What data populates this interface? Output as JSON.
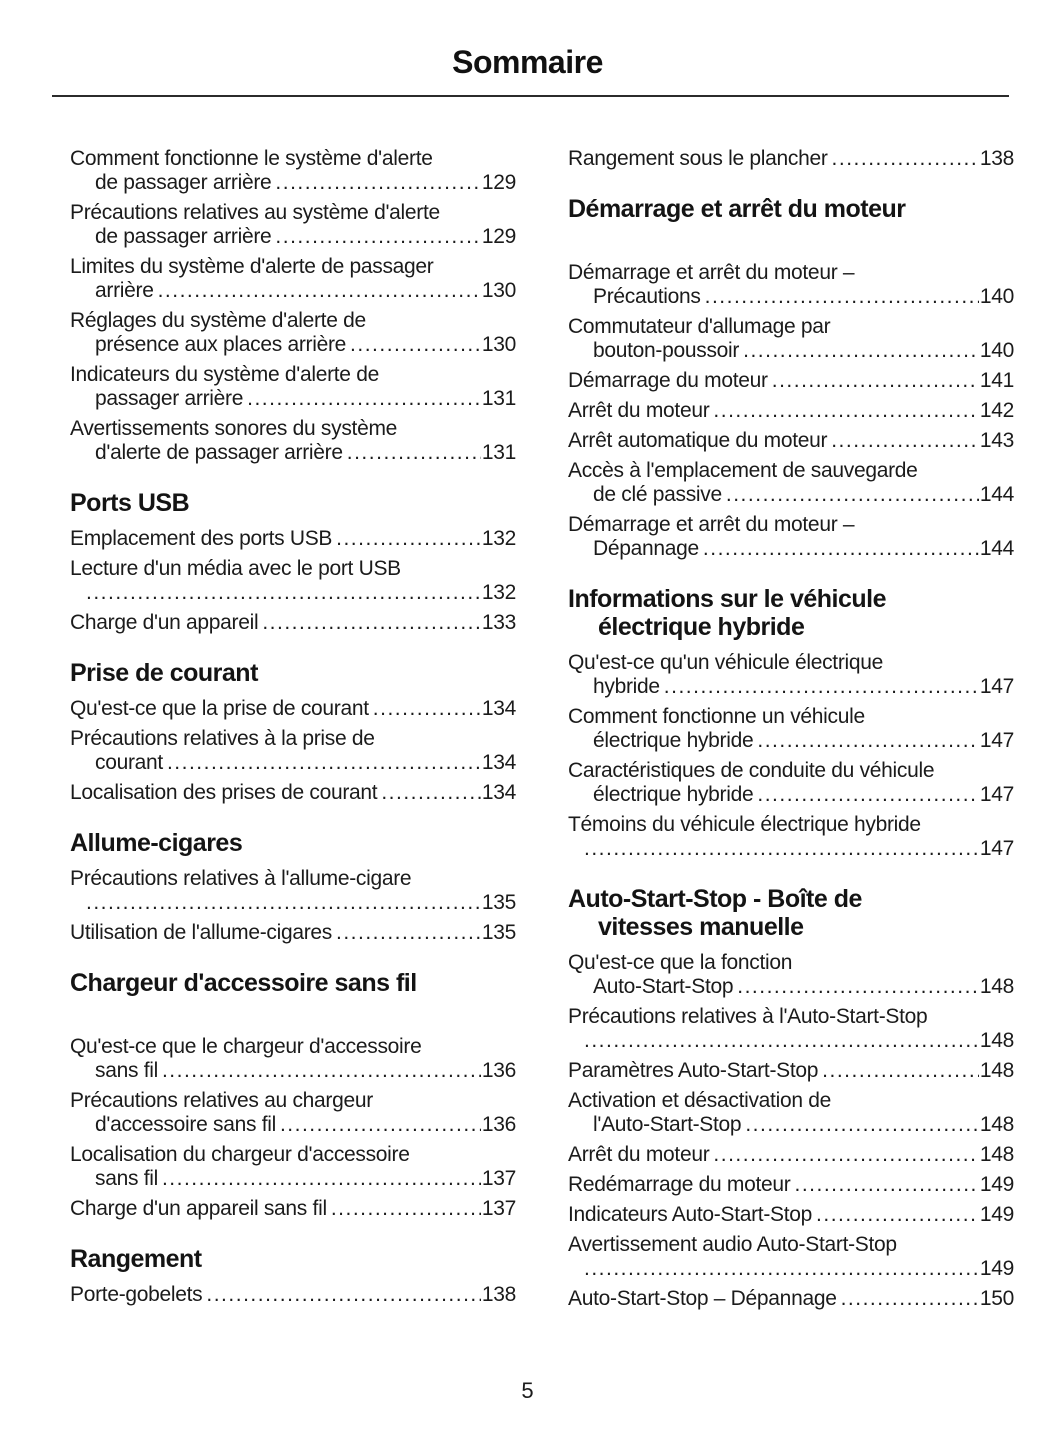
{
  "title": "Sommaire",
  "page_number": "5",
  "colors": {
    "ink": "#1b1b1b",
    "rule": "#2b2b2b",
    "background": "#ffffff"
  },
  "columns": [
    {
      "blocks": [
        {
          "heading_lines": [],
          "extra_gap": false,
          "entries": [
            {
              "lines": [
                "Comment fonctionne le système d'alerte",
                "de passager arrière"
              ],
              "page": "129"
            },
            {
              "lines": [
                "Précautions relatives au système d'alerte",
                "de passager arrière"
              ],
              "page": "129"
            },
            {
              "lines": [
                "Limites du système d'alerte de passager",
                "arrière"
              ],
              "page": "130"
            },
            {
              "lines": [
                "Réglages du système d'alerte de",
                "présence aux places arrière"
              ],
              "page": "130"
            },
            {
              "lines": [
                "Indicateurs du système d'alerte de",
                "passager arrière"
              ],
              "page": "131"
            },
            {
              "lines": [
                "Avertissements sonores du système",
                "d'alerte de passager arrière"
              ],
              "page": "131"
            }
          ]
        },
        {
          "heading_lines": [
            "Ports USB"
          ],
          "extra_gap": false,
          "entries": [
            {
              "lines": [
                "Emplacement des ports USB"
              ],
              "page": "132"
            },
            {
              "lines": [
                "Lecture d'un média avec le port USB",
                ""
              ],
              "page": "132"
            },
            {
              "lines": [
                "Charge d'un appareil"
              ],
              "page": "133"
            }
          ]
        },
        {
          "heading_lines": [
            "Prise de courant"
          ],
          "extra_gap": false,
          "entries": [
            {
              "lines": [
                "Qu'est-ce que la prise de courant"
              ],
              "page": "134"
            },
            {
              "lines": [
                "Précautions relatives à la prise de",
                "courant"
              ],
              "page": "134"
            },
            {
              "lines": [
                "Localisation des prises de courant"
              ],
              "page": "134"
            }
          ]
        },
        {
          "heading_lines": [
            "Allume-cigares"
          ],
          "extra_gap": false,
          "entries": [
            {
              "lines": [
                "Précautions relatives à l'allume-cigare",
                ""
              ],
              "page": "135"
            },
            {
              "lines": [
                "Utilisation de l'allume-cigares"
              ],
              "page": "135"
            }
          ]
        },
        {
          "heading_lines": [
            "Chargeur d'accessoire sans fil"
          ],
          "extra_gap": true,
          "entries": [
            {
              "lines": [
                "Qu'est-ce que le chargeur d'accessoire",
                "sans fil"
              ],
              "page": "136"
            },
            {
              "lines": [
                "Précautions relatives au chargeur",
                "d'accessoire sans fil"
              ],
              "page": "136"
            },
            {
              "lines": [
                "Localisation du chargeur d'accessoire",
                "sans fil"
              ],
              "page": "137"
            },
            {
              "lines": [
                "Charge d'un appareil sans fil"
              ],
              "page": "137"
            }
          ]
        },
        {
          "heading_lines": [
            "Rangement"
          ],
          "extra_gap": false,
          "entries": [
            {
              "lines": [
                "Porte-gobelets"
              ],
              "page": "138"
            }
          ]
        }
      ]
    },
    {
      "blocks": [
        {
          "heading_lines": [],
          "extra_gap": false,
          "entries": [
            {
              "lines": [
                "Rangement sous le plancher"
              ],
              "page": "138"
            }
          ]
        },
        {
          "heading_lines": [
            "Démarrage et arrêt du moteur"
          ],
          "extra_gap": true,
          "entries": [
            {
              "lines": [
                "Démarrage et arrêt du moteur –",
                "Précautions"
              ],
              "page": "140"
            },
            {
              "lines": [
                "Commutateur d'allumage par",
                "bouton-poussoir"
              ],
              "page": "140"
            },
            {
              "lines": [
                "Démarrage du moteur"
              ],
              "page": "141"
            },
            {
              "lines": [
                "Arrêt du moteur"
              ],
              "page": "142"
            },
            {
              "lines": [
                "Arrêt automatique du moteur"
              ],
              "page": "143"
            },
            {
              "lines": [
                "Accès à l'emplacement de sauvegarde",
                "de clé passive"
              ],
              "page": "144"
            },
            {
              "lines": [
                "Démarrage et arrêt du moteur –",
                "Dépannage"
              ],
              "page": "144"
            }
          ]
        },
        {
          "heading_lines": [
            "Informations sur le véhicule",
            "électrique hybride"
          ],
          "extra_gap": false,
          "entries": [
            {
              "lines": [
                "Qu'est-ce qu'un véhicule électrique",
                "hybride"
              ],
              "page": "147"
            },
            {
              "lines": [
                "Comment fonctionne un véhicule",
                "électrique hybride"
              ],
              "page": "147"
            },
            {
              "lines": [
                "Caractéristiques de conduite du véhicule",
                "électrique hybride"
              ],
              "page": "147"
            },
            {
              "lines": [
                "Témoins du véhicule électrique hybride",
                ""
              ],
              "page": "147"
            }
          ]
        },
        {
          "heading_lines": [
            "Auto-Start-Stop - Boîte de",
            "vitesses manuelle"
          ],
          "extra_gap": false,
          "entries": [
            {
              "lines": [
                "Qu'est-ce que la fonction",
                "Auto-Start-Stop"
              ],
              "page": "148"
            },
            {
              "lines": [
                "Précautions relatives à l'Auto-Start-Stop",
                ""
              ],
              "page": "148"
            },
            {
              "lines": [
                "Paramètres Auto-Start-Stop"
              ],
              "page": "148"
            },
            {
              "lines": [
                "Activation et désactivation de",
                "l'Auto-Start-Stop"
              ],
              "page": "148"
            },
            {
              "lines": [
                "Arrêt du moteur"
              ],
              "page": "148"
            },
            {
              "lines": [
                "Redémarrage du moteur"
              ],
              "page": "149"
            },
            {
              "lines": [
                "Indicateurs Auto-Start-Stop"
              ],
              "page": "149"
            },
            {
              "lines": [
                "Avertissement audio Auto-Start-Stop",
                ""
              ],
              "page": "149"
            },
            {
              "lines": [
                "Auto-Start-Stop – Dépannage"
              ],
              "page": "150"
            }
          ]
        }
      ]
    }
  ]
}
